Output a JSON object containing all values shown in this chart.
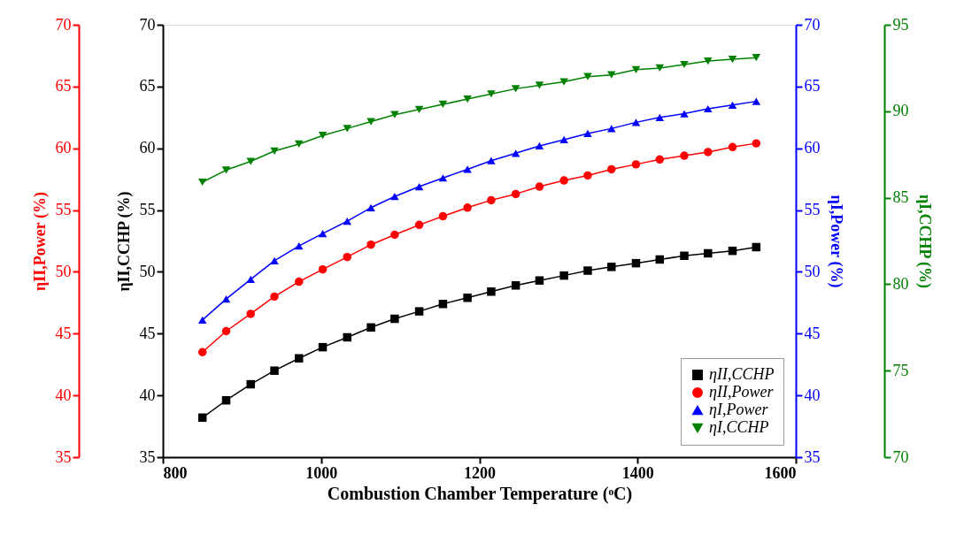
{
  "chart_data": {
    "type": "line",
    "xlabel": "Combustion Chamber Temperature (ᵒC)",
    "ylabel": "ηII,CCHP (%)",
    "y2label": "ηI,Power (%)",
    "y3label": "ηI,CCHP (%)",
    "annotations": [
      "ηII,Power (%)",
      "35",
      "40",
      "45",
      "50",
      "55",
      "60",
      "65",
      "70"
    ],
    "x": [
      850,
      880,
      911,
      941,
      972,
      1002,
      1033,
      1063,
      1093,
      1124,
      1154,
      1185,
      1215,
      1246,
      1276,
      1307,
      1337,
      1367,
      1398,
      1428,
      1459,
      1489,
      1520,
      1550
    ],
    "xlim": [
      800,
      1600
    ],
    "xticks": [
      800,
      1000,
      1200,
      1400,
      1600
    ],
    "ylim": [
      35,
      70
    ],
    "yticks": [
      35,
      40,
      45,
      50,
      55,
      60,
      65,
      70
    ],
    "y2lim": [
      35,
      70
    ],
    "y2ticks": [
      35,
      40,
      45,
      50,
      55,
      60,
      65,
      70
    ],
    "y3lim": [
      70,
      95
    ],
    "y3ticks": [
      70,
      75,
      80,
      85,
      90,
      95
    ],
    "grid": false,
    "legend": "bottom right",
    "line_style": "solid",
    "series": [
      {
        "name": "ηII,CCHP",
        "color": "#000000",
        "axis": "y",
        "marker": "square",
        "values": [
          38.2,
          39.6,
          40.9,
          42.0,
          43.0,
          43.9,
          44.7,
          45.5,
          46.2,
          46.8,
          47.4,
          47.9,
          48.4,
          48.9,
          49.3,
          49.7,
          50.1,
          50.4,
          50.7,
          51.0,
          51.3,
          51.5,
          51.7,
          52.0
        ]
      },
      {
        "name": "ηII,Power",
        "color": "#ff0000",
        "axis": "y",
        "marker": "circle",
        "values": [
          43.5,
          45.2,
          46.6,
          48.0,
          49.2,
          50.2,
          51.2,
          52.2,
          53.0,
          53.8,
          54.5,
          55.2,
          55.8,
          56.3,
          56.9,
          57.4,
          57.8,
          58.3,
          58.7,
          59.1,
          59.4,
          59.7,
          60.1,
          60.4
        ]
      },
      {
        "name": "ηI,Power",
        "color": "#0000ff",
        "axis": "y2",
        "marker": "triangle",
        "values": [
          46.1,
          47.8,
          49.4,
          50.9,
          52.1,
          53.1,
          54.1,
          55.2,
          56.1,
          56.9,
          57.6,
          58.3,
          59.0,
          59.6,
          60.2,
          60.7,
          61.2,
          61.6,
          62.1,
          62.5,
          62.8,
          63.2,
          63.5,
          63.8
        ]
      },
      {
        "name": "ηI,CCHP",
        "color": "#008000",
        "axis": "y3",
        "marker": "triangle-down",
        "values": [
          85.9,
          86.6,
          87.1,
          87.7,
          88.1,
          88.6,
          89.0,
          89.4,
          89.8,
          90.1,
          90.4,
          90.7,
          91.0,
          91.3,
          91.5,
          91.7,
          92.0,
          92.1,
          92.4,
          92.5,
          92.7,
          92.9,
          93.0,
          93.1
        ]
      }
    ]
  }
}
